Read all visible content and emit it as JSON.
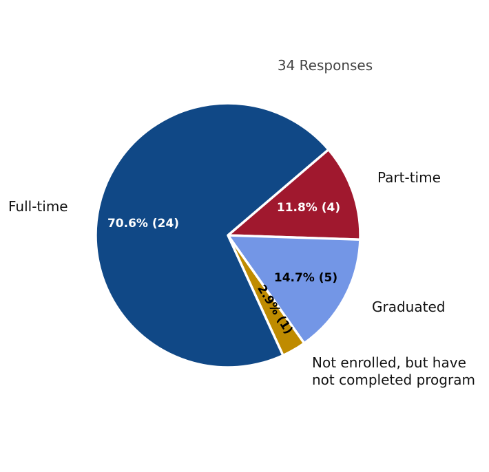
{
  "chart_data": {
    "type": "pie",
    "title": "",
    "subtitle": "34 Responses",
    "slices": [
      {
        "name": "Part-time",
        "value": 4,
        "percent": "11.8%",
        "label": "11.8% (4)",
        "color": "#a0182e",
        "label_color": "#ffffff"
      },
      {
        "name": "Graduated",
        "value": 5,
        "percent": "14.7%",
        "label": "14.7% (5)",
        "color": "#7396e6",
        "label_color": "#000000"
      },
      {
        "name": "Not enrolled, but have not completed program",
        "name_lines": [
          "Not enrolled, but have",
          "not completed program"
        ],
        "value": 1,
        "percent": "2.9%",
        "label": "2.9% (1)",
        "color": "#bf8b00",
        "label_color": "#000000"
      },
      {
        "name": "Full-time",
        "value": 24,
        "percent": "70.6%",
        "label": "70.6% (24)",
        "color": "#104886",
        "label_color": "#ffffff"
      }
    ]
  }
}
